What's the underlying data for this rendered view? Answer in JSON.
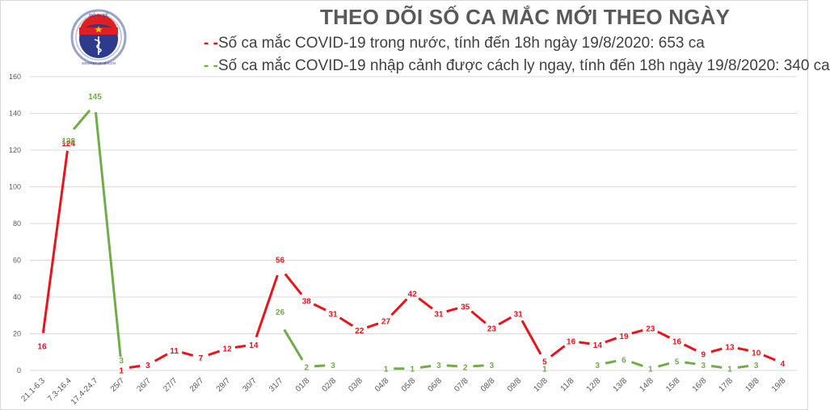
{
  "header": {
    "title": "THEO DÕI SỐ CA MẮC MỚI THEO NGÀY",
    "logo": {
      "top_text": "BỘ Y TẾ",
      "bottom_text": "MINISTRY OF HEALTH",
      "icon": "caduceus-star-emblem-icon"
    }
  },
  "legend": [
    {
      "marker": "- -",
      "label": "Số ca mắc COVID-19 trong nước, tính đến 18h ngày 19/8/2020: 653 ca",
      "color": "#e8141b"
    },
    {
      "marker": "- -",
      "label": "Số ca mắc COVID-19 nhập cảnh được cách ly ngay, tính đến 18h ngày 19/8/2020: 340 ca",
      "color": "#70ad47"
    }
  ],
  "colors": {
    "domestic": "#e8141b",
    "imported": "#70ad47",
    "grid": "#d9d9d9",
    "axis_text": "#595959",
    "title": "#595959"
  },
  "chart_data": {
    "type": "line",
    "title": "THEO DÕI SỐ CA MẮC MỚI THEO NGÀY",
    "xlabel": "",
    "ylabel": "",
    "ylim": [
      0,
      160
    ],
    "yticks": [
      0,
      20,
      40,
      60,
      80,
      100,
      120,
      140,
      160
    ],
    "grid": true,
    "legend_position": "top",
    "categories": [
      "21.1-6.3",
      "7.3-16.4",
      "17.4-24.7",
      "25/7",
      "26/7",
      "27/7",
      "28/7",
      "29/7",
      "30/7",
      "31/7",
      "01/8",
      "02/8",
      "03/8",
      "04/8",
      "05/8",
      "06/8",
      "07/8",
      "08/8",
      "09/8",
      "10/8",
      "11/8",
      "12/8",
      "13/8",
      "14/8",
      "15/8",
      "16/8",
      "17/8",
      "18/8",
      "19/8"
    ],
    "series": [
      {
        "name": "Số ca mắc COVID-19 trong nước, tính đến 18h ngày 19/8/2020: 653 ca",
        "color": "#e8141b",
        "values": [
          16,
          124,
          null,
          1,
          3,
          11,
          7,
          12,
          14,
          56,
          38,
          31,
          22,
          27,
          42,
          31,
          35,
          23,
          31,
          5,
          16,
          14,
          19,
          23,
          16,
          9,
          13,
          10,
          4
        ]
      },
      {
        "name": "Số ca mắc COVID-19 nhập cảnh được cách ly ngay, tính đến 18h ngày 19/8/2020: 340 ca",
        "color": "#70ad47",
        "values": [
          null,
          128,
          145,
          3,
          null,
          null,
          null,
          null,
          null,
          26,
          2,
          3,
          null,
          1,
          1,
          3,
          2,
          3,
          null,
          1,
          null,
          3,
          6,
          1,
          5,
          3,
          1,
          3,
          null
        ]
      }
    ]
  }
}
